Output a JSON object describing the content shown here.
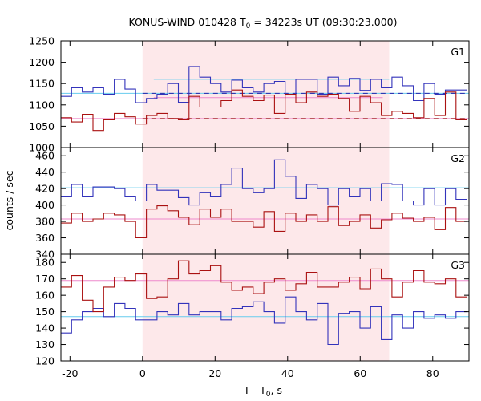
{
  "chart_data": {
    "type": "line",
    "title": {
      "main": "KONUS-WIND 010428 T",
      "sub": "0",
      "rest": " = 34223s UT (09:30:23.000)"
    },
    "xlabel": {
      "main": "T - T",
      "sub": "0",
      "rest": ", s"
    },
    "ylabel": "counts / sec",
    "xlim": [
      -22.5,
      90
    ],
    "xticks": [
      -20,
      0,
      20,
      40,
      60,
      80
    ],
    "shaded_interval": [
      0,
      68
    ],
    "colors": {
      "blue": "#3333bb",
      "red": "#aa1111",
      "cyan": "#66ccee",
      "pink": "#ee88cc",
      "shade": "#fde8ea"
    },
    "panels": [
      {
        "name": "G1",
        "ylim": [
          1000,
          1250
        ],
        "yticks": [
          1000,
          1050,
          1100,
          1150,
          1200,
          1250
        ],
        "bkg_blue": 1127,
        "bkg_red": 1068,
        "blue_level": 1160,
        "red_level": 1117,
        "series": [
          {
            "color": "blue",
            "x_start": -22.5,
            "step": 2.944,
            "values": [
              1120,
              1140,
              1130,
              1140,
              1125,
              1160,
              1137,
              1105,
              1115,
              1125,
              1150,
              1106,
              1190,
              1165,
              1150,
              1130,
              1158,
              1140,
              1130,
              1150,
              1155,
              1125,
              1160,
              1160,
              1125,
              1165,
              1145,
              1162,
              1134,
              1160,
              1140,
              1165,
              1145,
              1110,
              1150,
              1125,
              1135,
              1135
            ]
          },
          {
            "color": "red",
            "x_start": -22.5,
            "step": 2.944,
            "values": [
              1070,
              1060,
              1078,
              1040,
              1065,
              1080,
              1072,
              1055,
              1075,
              1080,
              1068,
              1065,
              1120,
              1095,
              1095,
              1110,
              1135,
              1120,
              1110,
              1123,
              1080,
              1125,
              1105,
              1130,
              1120,
              1125,
              1115,
              1085,
              1120,
              1105,
              1075,
              1085,
              1080,
              1070,
              1115,
              1075,
              1130,
              1065
            ]
          }
        ]
      },
      {
        "name": "G2",
        "ylim": [
          340,
          470
        ],
        "yticks": [
          340,
          360,
          380,
          400,
          420,
          440,
          460
        ],
        "bkg_blue": 421,
        "bkg_red": 383,
        "series": [
          {
            "color": "blue",
            "x_start": -22.5,
            "step": 2.944,
            "values": [
              410,
              425,
              410,
              422,
              422,
              420,
              410,
              405,
              425,
              418,
              418,
              409,
              400,
              415,
              410,
              425,
              445,
              420,
              415,
              420,
              455,
              435,
              408,
              425,
              420,
              400,
              420,
              410,
              420,
              405,
              426,
              425,
              405,
              400,
              420,
              400,
              420,
              407
            ]
          },
          {
            "color": "red",
            "x_start": -22.5,
            "step": 2.944,
            "values": [
              378,
              390,
              380,
              383,
              390,
              388,
              380,
              360,
              395,
              399,
              393,
              385,
              376,
              395,
              385,
              395,
              380,
              380,
              373,
              392,
              368,
              390,
              380,
              388,
              380,
              398,
              375,
              380,
              388,
              372,
              382,
              390,
              384,
              380,
              385,
              370,
              397,
              380
            ]
          }
        ]
      },
      {
        "name": "G3",
        "ylim": [
          120,
          185
        ],
        "yticks": [
          120,
          130,
          140,
          150,
          160,
          170,
          180
        ],
        "bkg_blue": 147,
        "bkg_red": 169,
        "series": [
          {
            "color": "blue",
            "x_start": -22.5,
            "step": 2.944,
            "values": [
              137,
              145,
              150,
              152,
              147,
              155,
              152,
              145,
              145,
              150,
              148,
              155,
              148,
              150,
              150,
              145,
              152,
              153,
              156,
              150,
              143,
              159,
              150,
              145,
              155,
              130,
              149,
              150,
              140,
              153,
              133,
              148,
              140,
              150,
              146,
              148,
              146,
              150
            ]
          },
          {
            "color": "red",
            "x_start": -22.5,
            "step": 2.944,
            "values": [
              165,
              172,
              157,
              150,
              165,
              171,
              169,
              173,
              158,
              159,
              170,
              181,
              173,
              175,
              178,
              168,
              163,
              165,
              161,
              168,
              170,
              163,
              167,
              174,
              165,
              165,
              168,
              171,
              164,
              176,
              170,
              159,
              168,
              175,
              168,
              167,
              170,
              159
            ]
          }
        ]
      }
    ]
  }
}
